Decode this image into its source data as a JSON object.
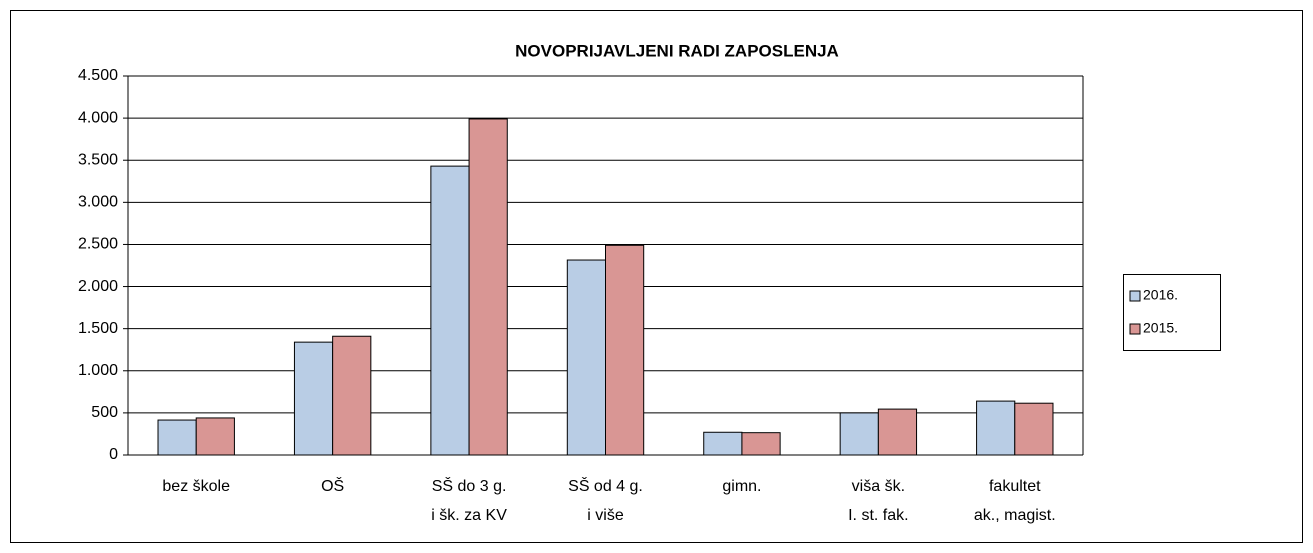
{
  "chart_data": {
    "type": "bar",
    "title": "NOVOPRIJAVLJENI  RADI ZAPOSLENJA",
    "categories": [
      [
        "bez škole"
      ],
      [
        "OŠ"
      ],
      [
        "SŠ do 3 g.",
        "i šk. za KV"
      ],
      [
        "SŠ od 4 g.",
        "i više"
      ],
      [
        "gimn."
      ],
      [
        "viša šk.",
        "I. st. fak."
      ],
      [
        "fakultet",
        "ak., magist."
      ]
    ],
    "series": [
      {
        "name": "2016.",
        "color": "#b9cde5",
        "values": [
          415,
          1340,
          3430,
          2315,
          270,
          500,
          640
        ]
      },
      {
        "name": "2015.",
        "color": "#d99694",
        "values": [
          440,
          1410,
          3990,
          2490,
          265,
          545,
          615
        ]
      }
    ],
    "ylim": [
      0,
      4500
    ],
    "yticks": [
      0,
      500,
      {
        "value": 1000,
        "label": "1.000"
      },
      {
        "value": 1500,
        "label": "1.500"
      },
      {
        "value": 2000,
        "label": "2.000"
      },
      {
        "value": 2500,
        "label": "2.500"
      },
      {
        "value": 3000,
        "label": "3.000"
      },
      {
        "value": 3500,
        "label": "3.500"
      },
      {
        "value": 4000,
        "label": "4.000"
      },
      {
        "value": 4500,
        "label": "4.500"
      }
    ],
    "grid": true,
    "legend": "right"
  }
}
